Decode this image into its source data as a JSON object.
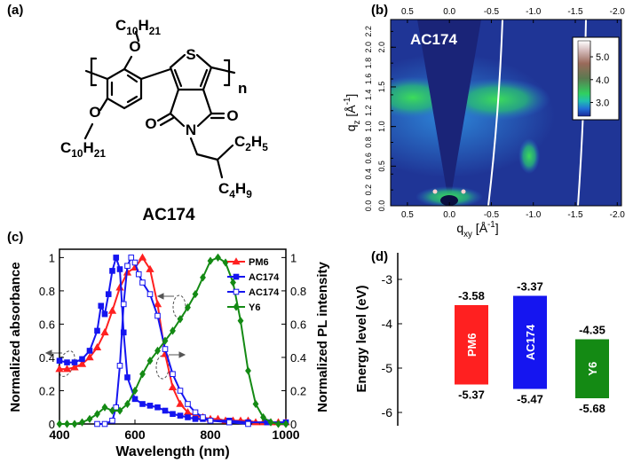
{
  "panel_labels": [
    "(a)",
    "(b)",
    "(c)",
    "(d)"
  ],
  "structure": {
    "name": "AC174",
    "atoms": [
      "O",
      "O",
      "S",
      "N",
      "O",
      "O"
    ],
    "repeat": "n",
    "substituents": [
      [
        {
          "text": "C"
        },
        {
          "text": "10",
          "sub": true
        },
        {
          "text": "H"
        },
        {
          "text": "21",
          "sub": true
        }
      ],
      [
        {
          "text": "C"
        },
        {
          "text": "10",
          "sub": true
        },
        {
          "text": "H"
        },
        {
          "text": "21",
          "sub": true
        }
      ],
      [
        {
          "text": "C"
        },
        {
          "text": "2",
          "sub": true
        },
        {
          "text": "H"
        },
        {
          "text": "5",
          "sub": true
        }
      ],
      [
        {
          "text": "C"
        },
        {
          "text": "4",
          "sub": true
        },
        {
          "text": "H"
        },
        {
          "text": "9",
          "sub": true
        }
      ]
    ]
  },
  "chart_data": [
    {
      "type": "heatmap",
      "label": "AC174",
      "xlabel": [
        {
          "text": "q"
        },
        {
          "text": "xy",
          "sub": true
        },
        {
          "text": " [Å"
        },
        {
          "text": "-1",
          "sup": true
        },
        {
          "text": "]"
        }
      ],
      "ylabel": [
        {
          "text": "q"
        },
        {
          "text": "z",
          "sub": true
        },
        {
          "text": " [Å"
        },
        {
          "text": "-1",
          "sup": true
        },
        {
          "text": "]"
        }
      ],
      "xlim": [
        0.7,
        -2.05
      ],
      "xticks": [
        0.5,
        {
          "value": 0,
          "label": "0.0"
        },
        -0.5,
        {
          "value": -1,
          "label": "-1.0"
        },
        -1.5,
        {
          "value": -2,
          "label": "-2.0"
        }
      ],
      "x2ticks": [
        0.5,
        {
          "value": 0,
          "label": "0.0"
        },
        -0.5,
        {
          "value": -1,
          "label": "-1.0"
        },
        -1.5,
        {
          "value": -2,
          "label": "-2.0"
        }
      ],
      "ylim": [
        0,
        2.35
      ],
      "yticks": [
        {
          "value": 0,
          "label": "0.0"
        },
        0.2,
        0.4,
        0.6,
        0.8,
        {
          "value": 1,
          "label": "1.0"
        },
        1.2,
        1.4,
        1.6,
        1.8,
        {
          "value": 2,
          "label": "2.0"
        },
        2.2
      ],
      "y2ticks": [
        {
          "value": 0,
          "label": "0.0"
        },
        0.5,
        {
          "value": 1,
          "label": "1.0"
        },
        1.5,
        {
          "value": 2,
          "label": "2.0"
        }
      ],
      "clim": [
        2.4,
        5.7
      ],
      "cticks": [
        {
          "value": 3,
          "label": "3.0"
        },
        {
          "value": 4,
          "label": "4.0"
        },
        {
          "value": 5,
          "label": "5.0"
        }
      ]
    },
    {
      "type": "line",
      "xlabel": "Wavelength (nm)",
      "ylabel": "Normalized absorbance",
      "y2label": "Normalized PL intensity",
      "xlim": [
        400,
        1000
      ],
      "xticks": [
        400,
        600,
        800,
        1000
      ],
      "ylim": [
        0,
        1.05
      ],
      "yticks": [
        0,
        0.2,
        0.4,
        0.6,
        0.8,
        1
      ],
      "y2lim": [
        0,
        1.05
      ],
      "y2ticks": [
        0,
        0.2,
        0.4,
        0.6,
        0.8,
        1
      ],
      "legend": "upper right",
      "series": [
        {
          "name": "PM6",
          "color": "#ff2020",
          "marker": "triangle",
          "filled": true,
          "x": [
            400,
            420,
            440,
            460,
            480,
            500,
            520,
            540,
            560,
            580,
            600,
            620,
            640,
            660,
            680,
            700,
            720,
            740,
            760,
            780,
            800,
            820,
            840,
            860,
            880,
            900,
            920,
            940,
            960,
            980,
            1000
          ],
          "values": [
            0.33,
            0.33,
            0.34,
            0.36,
            0.4,
            0.46,
            0.55,
            0.68,
            0.82,
            0.91,
            0.94,
            1.0,
            0.93,
            0.72,
            0.42,
            0.22,
            0.12,
            0.07,
            0.05,
            0.04,
            0.03,
            0.03,
            0.02,
            0.02,
            0.02,
            0.02,
            0.01,
            0.01,
            0.01,
            0.01,
            0.01
          ]
        },
        {
          "name": "AC174",
          "color": "#1515f0",
          "marker": "square",
          "filled": true,
          "x": [
            400,
            420,
            440,
            460,
            480,
            500,
            510,
            520,
            530,
            540,
            550,
            560,
            570,
            580,
            600,
            620,
            640,
            660,
            680,
            700,
            720,
            740,
            760,
            780,
            800,
            850,
            900,
            950,
            1000
          ],
          "values": [
            0.38,
            0.37,
            0.37,
            0.39,
            0.44,
            0.56,
            0.71,
            0.66,
            0.78,
            0.92,
            1.0,
            0.93,
            0.55,
            0.28,
            0.15,
            0.12,
            0.11,
            0.1,
            0.08,
            0.06,
            0.05,
            0.04,
            0.03,
            0.03,
            0.02,
            0.02,
            0.01,
            0.01,
            0.01
          ]
        },
        {
          "name": "AC174",
          "color": "#1515f0",
          "marker": "square",
          "filled": false,
          "axis": "y2",
          "x": [
            500,
            520,
            540,
            550,
            560,
            570,
            580,
            590,
            600,
            610,
            620,
            640,
            660,
            680,
            700,
            720,
            740,
            760,
            780,
            800,
            850,
            900
          ],
          "values": [
            0,
            0,
            0.02,
            0.1,
            0.35,
            0.72,
            0.95,
            1.0,
            0.97,
            0.9,
            0.85,
            0.78,
            0.65,
            0.45,
            0.3,
            0.2,
            0.12,
            0.07,
            0.04,
            0.02,
            0.01,
            0
          ]
        },
        {
          "name": "Y6",
          "color": "#148a14",
          "marker": "diamond",
          "filled": true,
          "axis": "y2",
          "x": [
            400,
            420,
            440,
            460,
            480,
            500,
            520,
            540,
            560,
            580,
            600,
            620,
            640,
            660,
            680,
            700,
            720,
            740,
            760,
            780,
            800,
            820,
            840,
            860,
            880,
            900,
            920,
            940,
            960,
            980,
            1000
          ],
          "values": [
            0,
            0,
            0,
            0.01,
            0.03,
            0.06,
            0.1,
            0.08,
            0.08,
            0.12,
            0.2,
            0.3,
            0.38,
            0.44,
            0.5,
            0.56,
            0.63,
            0.7,
            0.78,
            0.88,
            0.98,
            1.0,
            0.97,
            0.85,
            0.62,
            0.32,
            0.12,
            0.04,
            0.01,
            0,
            0
          ]
        }
      ]
    },
    {
      "type": "floating_bar",
      "ylabel": "Energy level (eV)",
      "ylim": [
        -6.3,
        -2.4
      ],
      "yticks": [
        -3,
        -4,
        -5,
        -6
      ],
      "categories": [
        "PM6",
        "AC174",
        "Y6"
      ],
      "colors": [
        "#ff2020",
        "#1515f0",
        "#148a14"
      ],
      "values_top": [
        -3.58,
        -3.37,
        -4.35
      ],
      "values_bottom": [
        -5.37,
        -5.47,
        -5.68
      ]
    }
  ]
}
